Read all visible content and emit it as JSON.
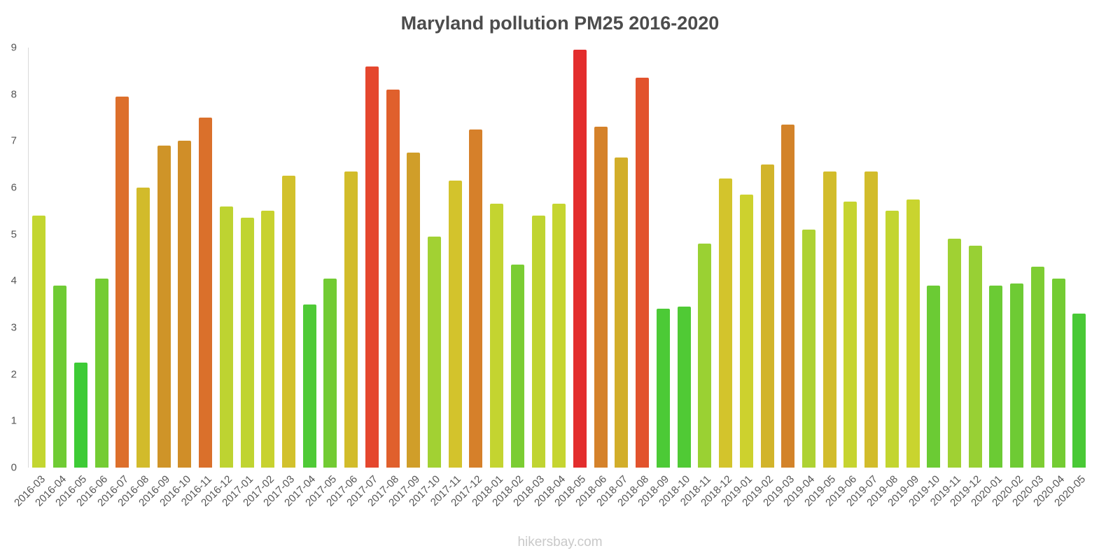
{
  "title": "Maryland pollution PM25 2016-2020",
  "watermark": "hikersbay.com",
  "chart_data": {
    "type": "bar",
    "title": "Maryland pollution PM25 2016-2020",
    "xlabel": "",
    "ylabel": "",
    "ylim": [
      0,
      9
    ],
    "yticks": [
      0,
      1,
      2,
      3,
      4,
      5,
      6,
      7,
      8,
      9
    ],
    "grid": false,
    "legend": false,
    "categories": [
      "2016-03",
      "2016-04",
      "2016-05",
      "2016-06",
      "2016-07",
      "2016-08",
      "2016-09",
      "2016-10",
      "2016-11",
      "2016-12",
      "2017-01",
      "2017-02",
      "2017-03",
      "2017-04",
      "2017-05",
      "2017-06",
      "2017-07",
      "2017-08",
      "2017-09",
      "2017-10",
      "2017-11",
      "2017-12",
      "2018-01",
      "2018-02",
      "2018-03",
      "2018-04",
      "2018-05",
      "2018-06",
      "2018-07",
      "2018-08",
      "2018-09",
      "2018-10",
      "2018-11",
      "2018-12",
      "2019-01",
      "2019-02",
      "2019-03",
      "2019-04",
      "2019-05",
      "2019-06",
      "2019-07",
      "2019-08",
      "2019-09",
      "2019-10",
      "2019-11",
      "2019-12",
      "2020-01",
      "2020-02",
      "2020-03",
      "2020-04",
      "2020-05"
    ],
    "values": [
      5.4,
      3.9,
      2.25,
      4.05,
      7.95,
      6.0,
      6.9,
      7.0,
      7.5,
      5.6,
      5.35,
      5.5,
      6.25,
      3.5,
      4.05,
      6.35,
      8.6,
      8.1,
      6.75,
      4.95,
      6.15,
      7.25,
      5.65,
      4.35,
      5.4,
      5.65,
      8.95,
      7.3,
      6.65,
      8.35,
      3.4,
      3.45,
      4.8,
      6.2,
      5.85,
      6.5,
      7.35,
      5.1,
      6.35,
      5.7,
      6.35,
      5.5,
      5.75,
      3.9,
      4.9,
      4.75,
      3.9,
      3.95,
      4.3,
      4.05,
      3.3
    ],
    "colors": [
      "#c3d630",
      "#6fcb34",
      "#3dcb36",
      "#74cc33",
      "#dd6f2b",
      "#d2bb2b",
      "#cf9428",
      "#d08e28",
      "#da702b",
      "#bed331",
      "#c0d431",
      "#c8d22f",
      "#d2c12c",
      "#4fca36",
      "#72cb33",
      "#d2bc2a",
      "#e5472e",
      "#e0602c",
      "#d09e29",
      "#a2d133",
      "#d3c32c",
      "#d6802a",
      "#c4d430",
      "#7bcd33",
      "#c0d431",
      "#c6d530",
      "#e32d2d",
      "#d5822a",
      "#d2ae2a",
      "#e2532d",
      "#4cca36",
      "#50ca35",
      "#9ad133",
      "#d3c42c",
      "#cdd12e",
      "#d2b42b",
      "#d3832a",
      "#aed233",
      "#d2bc2b",
      "#c6d430",
      "#d2bc2b",
      "#c3d530",
      "#c9d42f",
      "#6bcb34",
      "#a0d133",
      "#98d034",
      "#6bcb34",
      "#6ecb34",
      "#7ecd33",
      "#74cc33",
      "#49c936"
    ]
  }
}
